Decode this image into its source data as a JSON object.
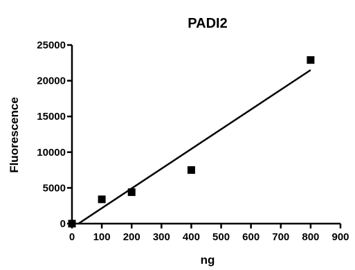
{
  "chart_data": {
    "type": "scatter",
    "title": "PADI2",
    "xlabel": "ng",
    "ylabel": "Fluorescence",
    "xlim": [
      0,
      900
    ],
    "ylim": [
      0,
      25000
    ],
    "x_ticks": [
      0,
      100,
      200,
      300,
      400,
      500,
      600,
      700,
      800,
      900
    ],
    "y_ticks": [
      0,
      5000,
      10000,
      15000,
      20000,
      25000
    ],
    "x_tick_labels": [
      "0",
      "100",
      "200",
      "300",
      "400",
      "500",
      "600",
      "700",
      "800",
      "900"
    ],
    "y_tick_labels": [
      "0",
      "5000",
      "10000",
      "15000",
      "20000",
      "25000"
    ],
    "grid": false,
    "series": [
      {
        "x": [
          0,
          100,
          200,
          400,
          800
        ],
        "y": [
          0,
          3400,
          4400,
          7500,
          22900
        ],
        "marker": "square",
        "color": "#000000"
      }
    ],
    "fit_line": {
      "x": [
        0,
        800
      ],
      "y": [
        -600,
        21500
      ],
      "color": "#000000"
    }
  }
}
